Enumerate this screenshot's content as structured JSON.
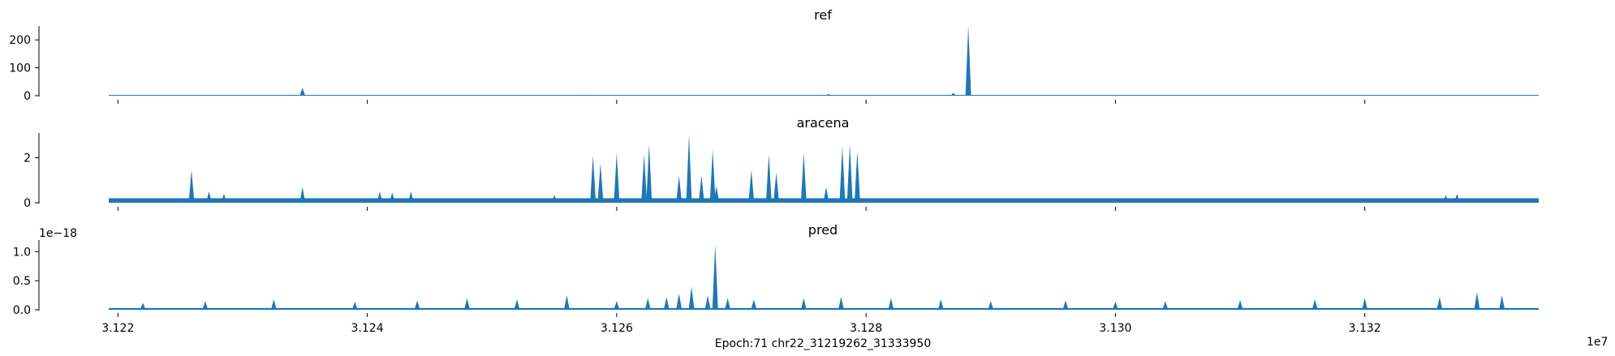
{
  "chart_data": {
    "type": "area",
    "color": "#1f77b4",
    "xlabel": "Epoch:71 chr22_31219262_31333950",
    "x_offset_label": "1e7",
    "x_tick_labels": [
      "3.122",
      "3.124",
      "3.126",
      "3.128",
      "3.130",
      "3.132"
    ],
    "x_ticks": [
      31220000,
      31240000,
      31260000,
      31280000,
      31300000,
      31320000
    ],
    "xlim": [
      31219262,
      31333950
    ],
    "panels": [
      {
        "title": "ref",
        "ylim": [
          0,
          250
        ],
        "y_ticks": [
          0,
          100,
          200
        ],
        "y_tick_labels": [
          "0",
          "100",
          "200"
        ],
        "offset_label": "",
        "baseline": 0,
        "peaks": [
          {
            "x": 31225700,
            "y": 2
          },
          {
            "x": 31234800,
            "y": 28
          },
          {
            "x": 31256500,
            "y": 3
          },
          {
            "x": 31257700,
            "y": 4
          },
          {
            "x": 31259000,
            "y": 3
          },
          {
            "x": 31262400,
            "y": 2
          },
          {
            "x": 31265800,
            "y": 2
          },
          {
            "x": 31272500,
            "y": 3
          },
          {
            "x": 31277000,
            "y": 6
          },
          {
            "x": 31279500,
            "y": 2
          },
          {
            "x": 31287000,
            "y": 10
          },
          {
            "x": 31288200,
            "y": 250
          },
          {
            "x": 31289100,
            "y": 3
          },
          {
            "x": 31327000,
            "y": 2
          },
          {
            "x": 31329000,
            "y": 2
          }
        ]
      },
      {
        "title": "aracena",
        "ylim": [
          0,
          3.1
        ],
        "y_ticks": [
          0,
          2
        ],
        "y_tick_labels": [
          "0",
          "2"
        ],
        "offset_label": "",
        "baseline": 0.2,
        "peaks": [
          {
            "x": 31225900,
            "y": 1.45
          },
          {
            "x": 31227300,
            "y": 0.5
          },
          {
            "x": 31228500,
            "y": 0.4
          },
          {
            "x": 31234800,
            "y": 0.7
          },
          {
            "x": 31241000,
            "y": 0.5
          },
          {
            "x": 31242000,
            "y": 0.45
          },
          {
            "x": 31243500,
            "y": 0.5
          },
          {
            "x": 31255000,
            "y": 0.35
          },
          {
            "x": 31258100,
            "y": 2.1
          },
          {
            "x": 31258700,
            "y": 1.75
          },
          {
            "x": 31260000,
            "y": 2.2
          },
          {
            "x": 31262200,
            "y": 2.15
          },
          {
            "x": 31262600,
            "y": 2.6
          },
          {
            "x": 31265000,
            "y": 1.2
          },
          {
            "x": 31265800,
            "y": 3.0
          },
          {
            "x": 31266800,
            "y": 1.2
          },
          {
            "x": 31267700,
            "y": 2.35
          },
          {
            "x": 31268000,
            "y": 0.75
          },
          {
            "x": 31270800,
            "y": 1.45
          },
          {
            "x": 31272200,
            "y": 2.15
          },
          {
            "x": 31272800,
            "y": 1.35
          },
          {
            "x": 31275000,
            "y": 2.2
          },
          {
            "x": 31276800,
            "y": 0.7
          },
          {
            "x": 31278100,
            "y": 2.5
          },
          {
            "x": 31278700,
            "y": 2.6
          },
          {
            "x": 31279300,
            "y": 2.3
          },
          {
            "x": 31326500,
            "y": 0.35
          },
          {
            "x": 31327400,
            "y": 0.4
          }
        ]
      },
      {
        "title": "pred",
        "ylim": [
          0,
          1.2
        ],
        "y_ticks": [
          0.0,
          0.5,
          1.0
        ],
        "y_tick_labels": [
          "0.0",
          "0.5",
          "1.0"
        ],
        "offset_label": "1e−18",
        "baseline": 0.03,
        "peaks": [
          {
            "x": 31222000,
            "y": 0.12
          },
          {
            "x": 31227000,
            "y": 0.15
          },
          {
            "x": 31232500,
            "y": 0.18
          },
          {
            "x": 31239000,
            "y": 0.14
          },
          {
            "x": 31244000,
            "y": 0.16
          },
          {
            "x": 31248000,
            "y": 0.2
          },
          {
            "x": 31252000,
            "y": 0.18
          },
          {
            "x": 31256000,
            "y": 0.25
          },
          {
            "x": 31260000,
            "y": 0.15
          },
          {
            "x": 31262500,
            "y": 0.2
          },
          {
            "x": 31264000,
            "y": 0.22
          },
          {
            "x": 31265000,
            "y": 0.28
          },
          {
            "x": 31266000,
            "y": 0.4
          },
          {
            "x": 31267300,
            "y": 0.25
          },
          {
            "x": 31267900,
            "y": 1.12
          },
          {
            "x": 31268900,
            "y": 0.2
          },
          {
            "x": 31271000,
            "y": 0.18
          },
          {
            "x": 31275000,
            "y": 0.2
          },
          {
            "x": 31278000,
            "y": 0.22
          },
          {
            "x": 31282000,
            "y": 0.2
          },
          {
            "x": 31286000,
            "y": 0.18
          },
          {
            "x": 31290000,
            "y": 0.15
          },
          {
            "x": 31296000,
            "y": 0.16
          },
          {
            "x": 31300000,
            "y": 0.14
          },
          {
            "x": 31304000,
            "y": 0.15
          },
          {
            "x": 31310000,
            "y": 0.17
          },
          {
            "x": 31316000,
            "y": 0.18
          },
          {
            "x": 31320000,
            "y": 0.2
          },
          {
            "x": 31326000,
            "y": 0.22
          },
          {
            "x": 31329000,
            "y": 0.3
          },
          {
            "x": 31331000,
            "y": 0.25
          }
        ]
      }
    ]
  }
}
